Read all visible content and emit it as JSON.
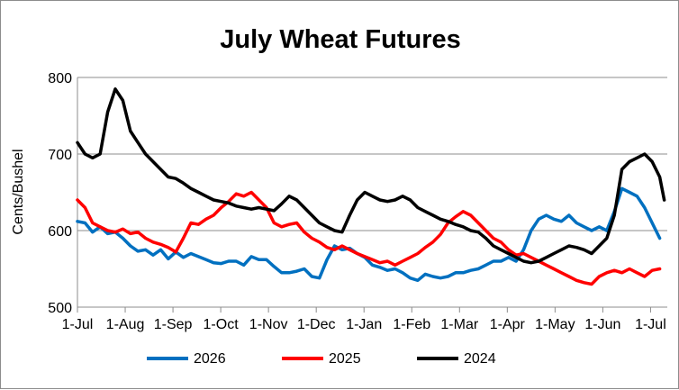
{
  "chart_data": {
    "type": "line",
    "title": "July Wheat Futures",
    "ylabel": "Cents/Bushel",
    "xlabel": "",
    "ylim": [
      500,
      800
    ],
    "yticks": [
      500,
      600,
      700,
      800
    ],
    "xticks": [
      "1-Jul",
      "1-Aug",
      "1-Sep",
      "1-Oct",
      "1-Nov",
      "1-Dec",
      "1-Jan",
      "1-Feb",
      "1-Mar",
      "1-Apr",
      "1-May",
      "1-Jun",
      "1-Jul"
    ],
    "x_unit": "days after 1-Jul",
    "xlim": [
      0,
      390
    ],
    "grid": {
      "horizontal": true,
      "vertical": false
    },
    "legend_position": "bottom",
    "series": [
      {
        "name": "2026",
        "color": "#0070C0",
        "points": [
          [
            0,
            612
          ],
          [
            5,
            610
          ],
          [
            10,
            598
          ],
          [
            15,
            605
          ],
          [
            20,
            596
          ],
          [
            25,
            598
          ],
          [
            30,
            590
          ],
          [
            35,
            580
          ],
          [
            40,
            573
          ],
          [
            45,
            575
          ],
          [
            50,
            568
          ],
          [
            55,
            575
          ],
          [
            60,
            563
          ],
          [
            65,
            572
          ],
          [
            70,
            565
          ],
          [
            75,
            570
          ],
          [
            80,
            566
          ],
          [
            85,
            562
          ],
          [
            90,
            558
          ],
          [
            95,
            557
          ],
          [
            100,
            560
          ],
          [
            105,
            560
          ],
          [
            110,
            555
          ],
          [
            115,
            566
          ],
          [
            120,
            562
          ],
          [
            125,
            562
          ],
          [
            130,
            553
          ],
          [
            135,
            545
          ],
          [
            140,
            545
          ],
          [
            145,
            547
          ],
          [
            150,
            550
          ],
          [
            155,
            540
          ],
          [
            160,
            538
          ],
          [
            165,
            562
          ],
          [
            170,
            580
          ],
          [
            175,
            575
          ],
          [
            180,
            577
          ],
          [
            185,
            570
          ],
          [
            190,
            565
          ],
          [
            195,
            555
          ],
          [
            200,
            552
          ],
          [
            205,
            548
          ],
          [
            210,
            550
          ],
          [
            215,
            545
          ],
          [
            220,
            538
          ],
          [
            225,
            535
          ],
          [
            230,
            543
          ],
          [
            235,
            540
          ],
          [
            240,
            538
          ],
          [
            245,
            540
          ],
          [
            250,
            545
          ],
          [
            255,
            545
          ],
          [
            260,
            548
          ],
          [
            265,
            550
          ],
          [
            270,
            555
          ],
          [
            275,
            560
          ],
          [
            280,
            560
          ],
          [
            285,
            565
          ],
          [
            290,
            560
          ],
          [
            295,
            575
          ],
          [
            300,
            600
          ],
          [
            305,
            615
          ],
          [
            310,
            620
          ],
          [
            315,
            615
          ],
          [
            320,
            612
          ],
          [
            325,
            620
          ],
          [
            330,
            610
          ],
          [
            335,
            605
          ],
          [
            340,
            600
          ],
          [
            345,
            605
          ],
          [
            350,
            600
          ],
          [
            355,
            625
          ],
          [
            360,
            655
          ],
          [
            365,
            650
          ],
          [
            370,
            645
          ],
          [
            375,
            630
          ],
          [
            380,
            610
          ],
          [
            385,
            590
          ]
        ]
      },
      {
        "name": "2025",
        "color": "#FF0000",
        "points": [
          [
            0,
            640
          ],
          [
            5,
            630
          ],
          [
            10,
            610
          ],
          [
            15,
            605
          ],
          [
            20,
            600
          ],
          [
            25,
            598
          ],
          [
            30,
            602
          ],
          [
            35,
            596
          ],
          [
            40,
            598
          ],
          [
            45,
            590
          ],
          [
            50,
            585
          ],
          [
            55,
            582
          ],
          [
            60,
            578
          ],
          [
            65,
            572
          ],
          [
            70,
            590
          ],
          [
            75,
            610
          ],
          [
            80,
            608
          ],
          [
            85,
            615
          ],
          [
            90,
            620
          ],
          [
            95,
            630
          ],
          [
            100,
            638
          ],
          [
            105,
            648
          ],
          [
            110,
            645
          ],
          [
            115,
            650
          ],
          [
            120,
            640
          ],
          [
            125,
            630
          ],
          [
            130,
            610
          ],
          [
            135,
            605
          ],
          [
            140,
            608
          ],
          [
            145,
            610
          ],
          [
            150,
            598
          ],
          [
            155,
            590
          ],
          [
            160,
            585
          ],
          [
            165,
            578
          ],
          [
            170,
            575
          ],
          [
            175,
            580
          ],
          [
            180,
            575
          ],
          [
            185,
            570
          ],
          [
            190,
            566
          ],
          [
            195,
            562
          ],
          [
            200,
            558
          ],
          [
            205,
            560
          ],
          [
            210,
            555
          ],
          [
            215,
            560
          ],
          [
            220,
            565
          ],
          [
            225,
            570
          ],
          [
            230,
            578
          ],
          [
            235,
            585
          ],
          [
            240,
            595
          ],
          [
            245,
            610
          ],
          [
            250,
            618
          ],
          [
            255,
            625
          ],
          [
            260,
            620
          ],
          [
            265,
            610
          ],
          [
            270,
            600
          ],
          [
            275,
            590
          ],
          [
            280,
            585
          ],
          [
            285,
            575
          ],
          [
            290,
            568
          ],
          [
            295,
            570
          ],
          [
            300,
            565
          ],
          [
            305,
            560
          ],
          [
            310,
            555
          ],
          [
            315,
            550
          ],
          [
            320,
            545
          ],
          [
            325,
            540
          ],
          [
            330,
            535
          ],
          [
            335,
            532
          ],
          [
            340,
            530
          ],
          [
            345,
            540
          ],
          [
            350,
            545
          ],
          [
            355,
            548
          ],
          [
            360,
            545
          ],
          [
            365,
            550
          ],
          [
            370,
            545
          ],
          [
            375,
            540
          ],
          [
            380,
            548
          ],
          [
            385,
            550
          ]
        ]
      },
      {
        "name": "2024",
        "color": "#000000",
        "points": [
          [
            0,
            715
          ],
          [
            5,
            700
          ],
          [
            10,
            695
          ],
          [
            15,
            700
          ],
          [
            20,
            755
          ],
          [
            25,
            785
          ],
          [
            30,
            770
          ],
          [
            35,
            730
          ],
          [
            40,
            715
          ],
          [
            45,
            700
          ],
          [
            50,
            690
          ],
          [
            55,
            680
          ],
          [
            60,
            670
          ],
          [
            65,
            668
          ],
          [
            70,
            662
          ],
          [
            75,
            655
          ],
          [
            80,
            650
          ],
          [
            85,
            645
          ],
          [
            90,
            640
          ],
          [
            95,
            638
          ],
          [
            100,
            636
          ],
          [
            105,
            632
          ],
          [
            110,
            630
          ],
          [
            115,
            628
          ],
          [
            120,
            630
          ],
          [
            125,
            628
          ],
          [
            130,
            626
          ],
          [
            135,
            635
          ],
          [
            140,
            645
          ],
          [
            145,
            640
          ],
          [
            150,
            630
          ],
          [
            155,
            620
          ],
          [
            160,
            610
          ],
          [
            165,
            605
          ],
          [
            170,
            600
          ],
          [
            175,
            598
          ],
          [
            180,
            620
          ],
          [
            185,
            640
          ],
          [
            190,
            650
          ],
          [
            195,
            645
          ],
          [
            200,
            640
          ],
          [
            205,
            638
          ],
          [
            210,
            640
          ],
          [
            215,
            645
          ],
          [
            220,
            640
          ],
          [
            225,
            630
          ],
          [
            230,
            625
          ],
          [
            235,
            620
          ],
          [
            240,
            615
          ],
          [
            245,
            612
          ],
          [
            250,
            608
          ],
          [
            255,
            605
          ],
          [
            260,
            600
          ],
          [
            265,
            598
          ],
          [
            270,
            590
          ],
          [
            275,
            580
          ],
          [
            280,
            575
          ],
          [
            285,
            570
          ],
          [
            290,
            565
          ],
          [
            295,
            560
          ],
          [
            300,
            558
          ],
          [
            305,
            560
          ],
          [
            310,
            565
          ],
          [
            315,
            570
          ],
          [
            320,
            575
          ],
          [
            325,
            580
          ],
          [
            330,
            578
          ],
          [
            335,
            575
          ],
          [
            340,
            570
          ],
          [
            345,
            580
          ],
          [
            350,
            590
          ],
          [
            355,
            620
          ],
          [
            360,
            680
          ],
          [
            365,
            690
          ],
          [
            370,
            695
          ],
          [
            375,
            700
          ],
          [
            380,
            690
          ],
          [
            385,
            670
          ],
          [
            388,
            640
          ]
        ]
      }
    ]
  }
}
